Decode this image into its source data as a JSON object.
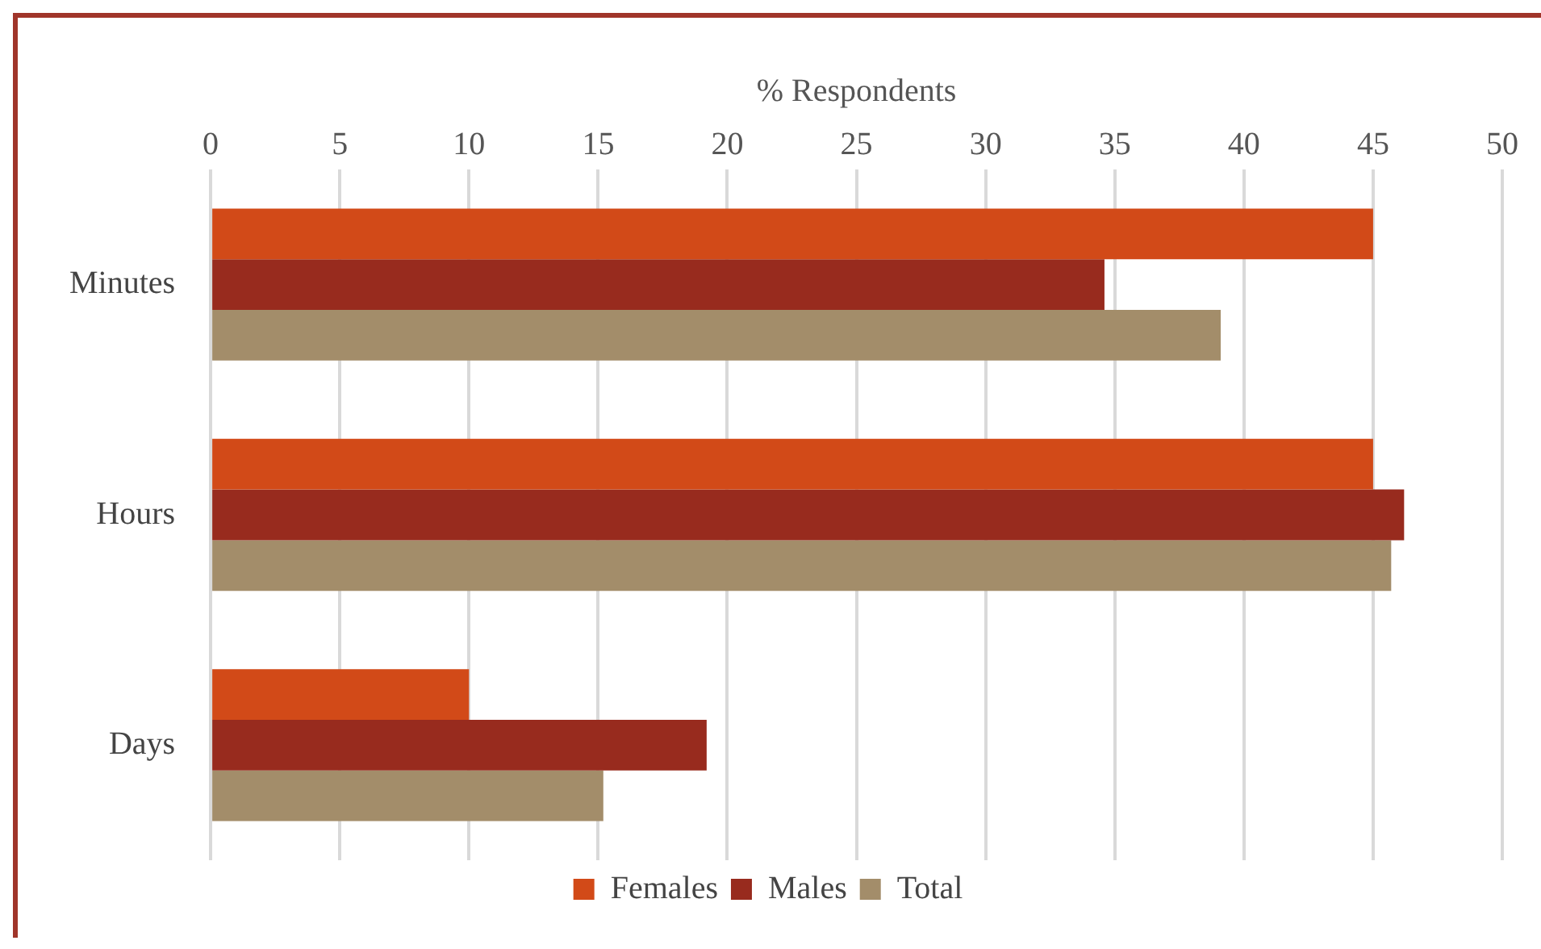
{
  "chart_data": {
    "type": "bar",
    "orientation": "horizontal",
    "xlabel": "% Respondents",
    "categories": [
      "Minutes",
      "Hours",
      "Days"
    ],
    "series": [
      {
        "name": "Females",
        "color": "#d24a18",
        "values": [
          45.0,
          45.0,
          10.0
        ]
      },
      {
        "name": "Males",
        "color": "#982b1e",
        "values": [
          34.6,
          46.2,
          19.2
        ]
      },
      {
        "name": "Total",
        "color": "#a38d6a",
        "values": [
          39.1,
          45.7,
          15.2
        ]
      }
    ],
    "xlim": [
      0,
      50
    ],
    "xticks": [
      0,
      5,
      10,
      15,
      20,
      25,
      30,
      35,
      40,
      45,
      50
    ],
    "grid": "x",
    "legend": "bottom"
  }
}
